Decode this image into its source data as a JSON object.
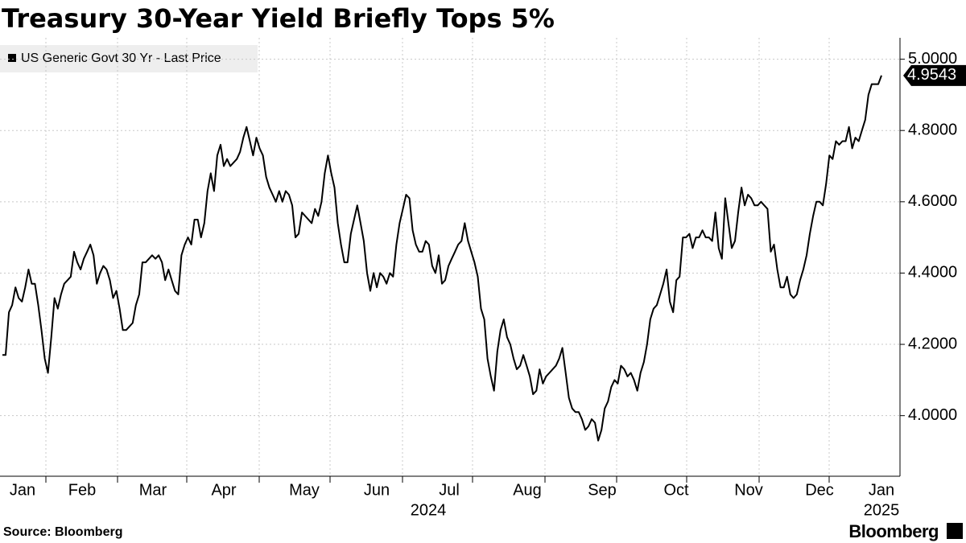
{
  "chart_data": {
    "type": "line",
    "title": "Treasury 30-Year Yield Briefly Tops 5%",
    "source": "Source: Bloomberg",
    "brand": "Bloomberg",
    "x_labels": [
      "Jan",
      "Feb",
      "Mar",
      "Apr",
      "May",
      "Jun",
      "Jul",
      "Aug",
      "Sep",
      "Oct",
      "Nov",
      "Dec",
      "Jan"
    ],
    "x_year_labels": [
      "2024",
      "2025"
    ],
    "series": [
      {
        "name": "US Generic Govt 30 Yr - Last Price",
        "color": "#000000",
        "values": [
          4.17,
          4.17,
          4.29,
          4.31,
          4.36,
          4.33,
          4.32,
          4.36,
          4.41,
          4.37,
          4.37,
          4.31,
          4.24,
          4.16,
          4.12,
          4.22,
          4.33,
          4.3,
          4.34,
          4.37,
          4.38,
          4.39,
          4.46,
          4.43,
          4.41,
          4.44,
          4.46,
          4.48,
          4.45,
          4.37,
          4.4,
          4.42,
          4.41,
          4.38,
          4.33,
          4.35,
          4.3,
          4.24,
          4.24,
          4.25,
          4.26,
          4.31,
          4.34,
          4.43,
          4.43,
          4.44,
          4.45,
          4.44,
          4.45,
          4.43,
          4.38,
          4.41,
          4.38,
          4.35,
          4.34,
          4.45,
          4.48,
          4.5,
          4.48,
          4.55,
          4.55,
          4.5,
          4.54,
          4.63,
          4.68,
          4.63,
          4.73,
          4.76,
          4.7,
          4.72,
          4.7,
          4.71,
          4.72,
          4.74,
          4.78,
          4.81,
          4.77,
          4.73,
          4.78,
          4.75,
          4.73,
          4.67,
          4.64,
          4.62,
          4.6,
          4.63,
          4.6,
          4.63,
          4.62,
          4.59,
          4.5,
          4.51,
          4.57,
          4.56,
          4.55,
          4.54,
          4.58,
          4.56,
          4.6,
          4.68,
          4.73,
          4.68,
          4.64,
          4.54,
          4.48,
          4.43,
          4.43,
          4.51,
          4.55,
          4.59,
          4.54,
          4.49,
          4.4,
          4.35,
          4.4,
          4.36,
          4.4,
          4.39,
          4.37,
          4.4,
          4.39,
          4.48,
          4.54,
          4.58,
          4.62,
          4.61,
          4.52,
          4.48,
          4.46,
          4.46,
          4.49,
          4.48,
          4.42,
          4.4,
          4.45,
          4.37,
          4.38,
          4.42,
          4.44,
          4.46,
          4.48,
          4.49,
          4.54,
          4.49,
          4.46,
          4.43,
          4.39,
          4.3,
          4.27,
          4.16,
          4.11,
          4.07,
          4.18,
          4.24,
          4.27,
          4.22,
          4.2,
          4.16,
          4.13,
          4.14,
          4.17,
          4.14,
          4.11,
          4.06,
          4.07,
          4.13,
          4.09,
          4.11,
          4.12,
          4.13,
          4.14,
          4.16,
          4.19,
          4.12,
          4.05,
          4.02,
          4.01,
          4.01,
          3.99,
          3.96,
          3.97,
          3.99,
          3.98,
          3.93,
          3.96,
          4.02,
          4.04,
          4.08,
          4.1,
          4.09,
          4.14,
          4.13,
          4.11,
          4.12,
          4.1,
          4.07,
          4.12,
          4.15,
          4.2,
          4.27,
          4.3,
          4.31,
          4.34,
          4.37,
          4.41,
          4.32,
          4.29,
          4.38,
          4.39,
          4.5,
          4.5,
          4.51,
          4.47,
          4.5,
          4.5,
          4.52,
          4.5,
          4.5,
          4.49,
          4.57,
          4.47,
          4.44,
          4.61,
          4.54,
          4.47,
          4.49,
          4.57,
          4.64,
          4.59,
          4.62,
          4.61,
          4.59,
          4.59,
          4.6,
          4.59,
          4.58,
          4.46,
          4.48,
          4.41,
          4.36,
          4.36,
          4.39,
          4.34,
          4.33,
          4.34,
          4.38,
          4.41,
          4.45,
          4.51,
          4.56,
          4.6,
          4.6,
          4.59,
          4.65,
          4.73,
          4.72,
          4.77,
          4.76,
          4.77,
          4.77,
          4.81,
          4.75,
          4.78,
          4.77,
          4.8,
          4.83,
          4.9,
          4.93,
          4.93,
          4.93,
          4.9543
        ]
      }
    ],
    "ylim": [
      3.83,
      5.06
    ],
    "yticks": [
      {
        "value": 4,
        "label": "4.0000"
      },
      {
        "value": 4.2,
        "label": "4.2000"
      },
      {
        "value": 4.4,
        "label": "4.4000"
      },
      {
        "value": 4.6,
        "label": "4.6000"
      },
      {
        "value": 4.8,
        "label": "4.8000"
      },
      {
        "value": 5,
        "label": "5.0000"
      }
    ],
    "grid": true
  }
}
